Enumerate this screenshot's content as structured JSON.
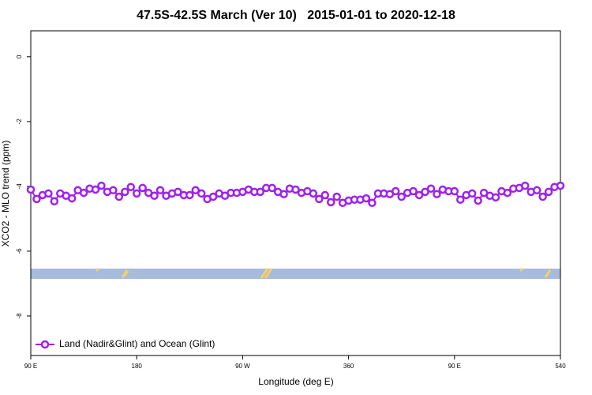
{
  "chart_data": {
    "type": "line",
    "title": "47.5S-42.5S March (Ver 10)   2015-01-01 to 2020-12-18",
    "x_label": "Longitude (deg E)",
    "y_label": "XCO2 - MLO trend (ppm)",
    "x": [
      90,
      95,
      100,
      105,
      110,
      115,
      120,
      125,
      130,
      135,
      140,
      145,
      150,
      155,
      160,
      165,
      170,
      175,
      180,
      185,
      190,
      195,
      200,
      205,
      210,
      215,
      220,
      225,
      230,
      235,
      240,
      245,
      250,
      255,
      260,
      265,
      270,
      275,
      280,
      285,
      290,
      295,
      300,
      305,
      310,
      315,
      320,
      325,
      330,
      335,
      340,
      345,
      350,
      355,
      360,
      365,
      370,
      375,
      380,
      385,
      390,
      395,
      400,
      405,
      410,
      415,
      420,
      425,
      430,
      435,
      440,
      445,
      450,
      455,
      460,
      465,
      470,
      475,
      480,
      485,
      490,
      495,
      500,
      505,
      510,
      515,
      520,
      525,
      530,
      535,
      540
    ],
    "series": [
      {
        "name": "Land (Nadir&Glint) and Ocean (Glint)",
        "color": "#a020f0",
        "values": [
          -4.1,
          -4.39,
          -4.27,
          -4.22,
          -4.46,
          -4.22,
          -4.29,
          -4.37,
          -4.12,
          -4.2,
          -4.07,
          -4.1,
          -3.98,
          -4.17,
          -4.12,
          -4.32,
          -4.17,
          -4.02,
          -4.22,
          -4.05,
          -4.2,
          -4.29,
          -4.12,
          -4.29,
          -4.22,
          -4.17,
          -4.27,
          -4.27,
          -4.12,
          -4.22,
          -4.39,
          -4.32,
          -4.22,
          -4.29,
          -4.2,
          -4.2,
          -4.17,
          -4.1,
          -4.17,
          -4.17,
          -4.05,
          -4.05,
          -4.17,
          -4.24,
          -4.07,
          -4.1,
          -4.2,
          -4.15,
          -4.22,
          -4.39,
          -4.27,
          -4.49,
          -4.32,
          -4.51,
          -4.44,
          -4.41,
          -4.41,
          -4.37,
          -4.51,
          -4.22,
          -4.22,
          -4.24,
          -4.15,
          -4.32,
          -4.2,
          -4.15,
          -4.27,
          -4.17,
          -4.07,
          -4.24,
          -4.1,
          -4.15,
          -4.15,
          -4.41,
          -4.27,
          -4.22,
          -4.44,
          -4.2,
          -4.29,
          -4.34,
          -4.15,
          -4.2,
          -4.07,
          -4.05,
          -3.98,
          -4.17,
          -4.12,
          -4.32,
          -4.17,
          -4.02,
          -3.98
        ]
      }
    ],
    "xlim": [
      90,
      540
    ],
    "xticks": [
      {
        "value": 90,
        "label": "90 E"
      },
      180,
      {
        "value": 270,
        "label": "90 W"
      },
      360,
      {
        "value": 450,
        "label": "90 E"
      },
      540
    ],
    "ylim": [
      -9.22,
      0.8
    ],
    "yticks": [
      0,
      -2,
      -4,
      -6,
      -8
    ],
    "legend": "bottom-left"
  }
}
